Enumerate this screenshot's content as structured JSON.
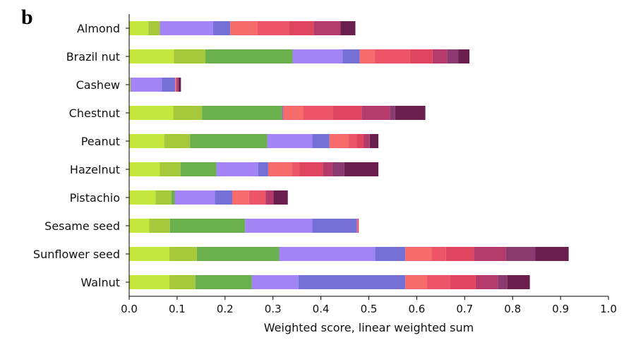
{
  "panel_label": "b",
  "chart_data": {
    "type": "bar",
    "orientation": "horizontal",
    "stacked": true,
    "xlabel": "Weighted score, linear weighted sum",
    "xlim": [
      0.0,
      1.0
    ],
    "xticks": [
      "0.0",
      "0.1",
      "0.2",
      "0.3",
      "0.4",
      "0.5",
      "0.6",
      "0.7",
      "0.8",
      "0.9",
      "1.0"
    ],
    "categories": [
      "Almond",
      "Brazil nut",
      "Cashew",
      "Chestnut",
      "Peanut",
      "Hazelnut",
      "Pistachio",
      "Sesame seed",
      "Sunflower seed",
      "Walnut"
    ],
    "segment_colors": [
      "#c5e63c",
      "#a5c93a",
      "#6ab04c",
      "#a384f5",
      "#7470d6",
      "#f76b6b",
      "#ee5468",
      "#e0455f",
      "#b43a6b",
      "#8a3a6f",
      "#6b1f4f"
    ],
    "series": [
      {
        "values": [
          0.04,
          0.093,
          0.002,
          0.092,
          0.073,
          0.064,
          0.055,
          0.042,
          0.084,
          0.084
        ]
      },
      {
        "values": [
          0.024,
          0.066,
          0.001,
          0.06,
          0.054,
          0.043,
          0.033,
          0.043,
          0.057,
          0.054
        ]
      },
      {
        "values": [
          0.0,
          0.182,
          0.0,
          0.167,
          0.161,
          0.075,
          0.007,
          0.157,
          0.172,
          0.118
        ]
      },
      {
        "values": [
          0.111,
          0.104,
          0.065,
          0.0,
          0.094,
          0.087,
          0.084,
          0.14,
          0.2,
          0.097
        ]
      },
      {
        "values": [
          0.036,
          0.036,
          0.028,
          0.002,
          0.036,
          0.021,
          0.036,
          0.093,
          0.063,
          0.223
        ]
      },
      {
        "values": [
          0.057,
          0.031,
          0.001,
          0.042,
          0.04,
          0.049,
          0.035,
          0.001,
          0.055,
          0.045
        ]
      },
      {
        "values": [
          0.065,
          0.074,
          0.001,
          0.062,
          0.017,
          0.016,
          0.035,
          0.001,
          0.03,
          0.049
        ]
      },
      {
        "values": [
          0.052,
          0.047,
          0.001,
          0.06,
          0.014,
          0.049,
          0.0,
          0.001,
          0.058,
          0.053
        ]
      },
      {
        "values": [
          0.056,
          0.03,
          0.003,
          0.059,
          0.012,
          0.02,
          0.016,
          0.001,
          0.067,
          0.046
        ]
      },
      {
        "values": [
          0.0,
          0.024,
          0.001,
          0.011,
          0.001,
          0.025,
          0.0,
          0.0,
          0.061,
          0.02
        ]
      },
      {
        "values": [
          0.031,
          0.023,
          0.005,
          0.063,
          0.018,
          0.071,
          0.03,
          0.0,
          0.07,
          0.047
        ]
      }
    ]
  }
}
